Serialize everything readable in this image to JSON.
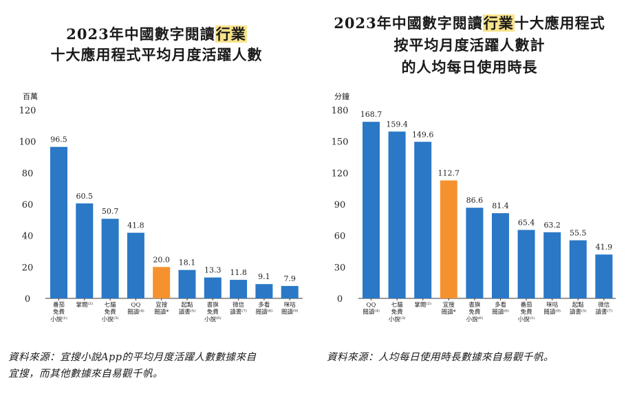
{
  "colors": {
    "bar": "#2a78c6",
    "highlight_bar": "#f5922f",
    "title_highlight": "#f9e38a",
    "axis": "#333333"
  },
  "chart_data": [
    {
      "type": "bar",
      "title_lines": [
        {
          "pre": "2023年中國數字閱讀",
          "hl": "行業",
          "post": ""
        },
        {
          "pre": "十大應用程式平均月度活躍人數",
          "hl": "",
          "post": ""
        }
      ],
      "ylabel": "百萬",
      "ylim": [
        0,
        120
      ],
      "yticks": [
        0,
        20,
        40,
        60,
        80,
        100,
        120
      ],
      "categories": [
        [
          "番茄",
          "免費",
          "小說⁽¹⁾"
        ],
        [
          "掌閱⁽²⁾"
        ],
        [
          "七貓",
          "免費",
          "小說⁽³⁾"
        ],
        [
          "QQ",
          "閱讀⁽⁴⁾"
        ],
        [
          "宜搜",
          "閱讀*"
        ],
        [
          "起點",
          "讀書⁽⁵⁾"
        ],
        [
          "書旗",
          "免費",
          "小說⁽⁶⁾"
        ],
        [
          "微信",
          "讀書⁽⁷⁾"
        ],
        [
          "多看",
          "閱讀⁽⁸⁾"
        ],
        [
          "咪咕",
          "閱讀⁽⁹⁾"
        ]
      ],
      "values": [
        96.5,
        60.5,
        50.7,
        41.8,
        20.0,
        18.1,
        13.3,
        11.8,
        9.1,
        7.9
      ],
      "value_labels": [
        "96.5",
        "60.5",
        "50.7",
        "41.8",
        "20.0",
        "18.1",
        "13.3",
        "11.8",
        "9.1",
        "7.9"
      ],
      "highlight_index": 4,
      "source_lines": [
        "資料來源：宜搜小說App的平均月度活躍人數數據來自",
        "宜搜，而其他數據來自易觀千帆。"
      ]
    },
    {
      "type": "bar",
      "title_lines": [
        {
          "pre": "2023年中國數字閱讀",
          "hl": "行業",
          "post": "十大應用程式"
        },
        {
          "pre": "按平均月度活躍人數計",
          "hl": "",
          "post": ""
        },
        {
          "pre": "的人均每日使用時長",
          "hl": "",
          "post": ""
        }
      ],
      "ylabel": "分鐘",
      "ylim": [
        0,
        180
      ],
      "yticks": [
        0,
        30,
        60,
        90,
        120,
        150,
        180
      ],
      "categories": [
        [
          "QQ",
          "閱讀⁽⁴⁾"
        ],
        [
          "七貓",
          "免費",
          "小說⁽³⁾"
        ],
        [
          "掌閱⁽²⁾"
        ],
        [
          "宜搜",
          "閱讀*"
        ],
        [
          "書旗",
          "免費",
          "小說⁽⁶⁾"
        ],
        [
          "多看",
          "閱讀⁽⁸⁾"
        ],
        [
          "番茄",
          "免費",
          "小說⁽¹⁾"
        ],
        [
          "咪咕",
          "閱讀⁽⁹⁾"
        ],
        [
          "起點",
          "讀書⁽⁵⁾"
        ],
        [
          "微信",
          "讀書⁽⁷⁾"
        ]
      ],
      "values": [
        168.7,
        159.4,
        149.6,
        112.7,
        86.6,
        81.4,
        65.4,
        63.2,
        55.5,
        41.9
      ],
      "value_labels": [
        "168.7",
        "159.4",
        "149.6",
        "112.7",
        "86.6",
        "81.4",
        "65.4",
        "63.2",
        "55.5",
        "41.9"
      ],
      "highlight_index": 3,
      "source_lines": [
        "資料來源：人均每日使用時長數據來自易觀千帆。"
      ]
    }
  ]
}
